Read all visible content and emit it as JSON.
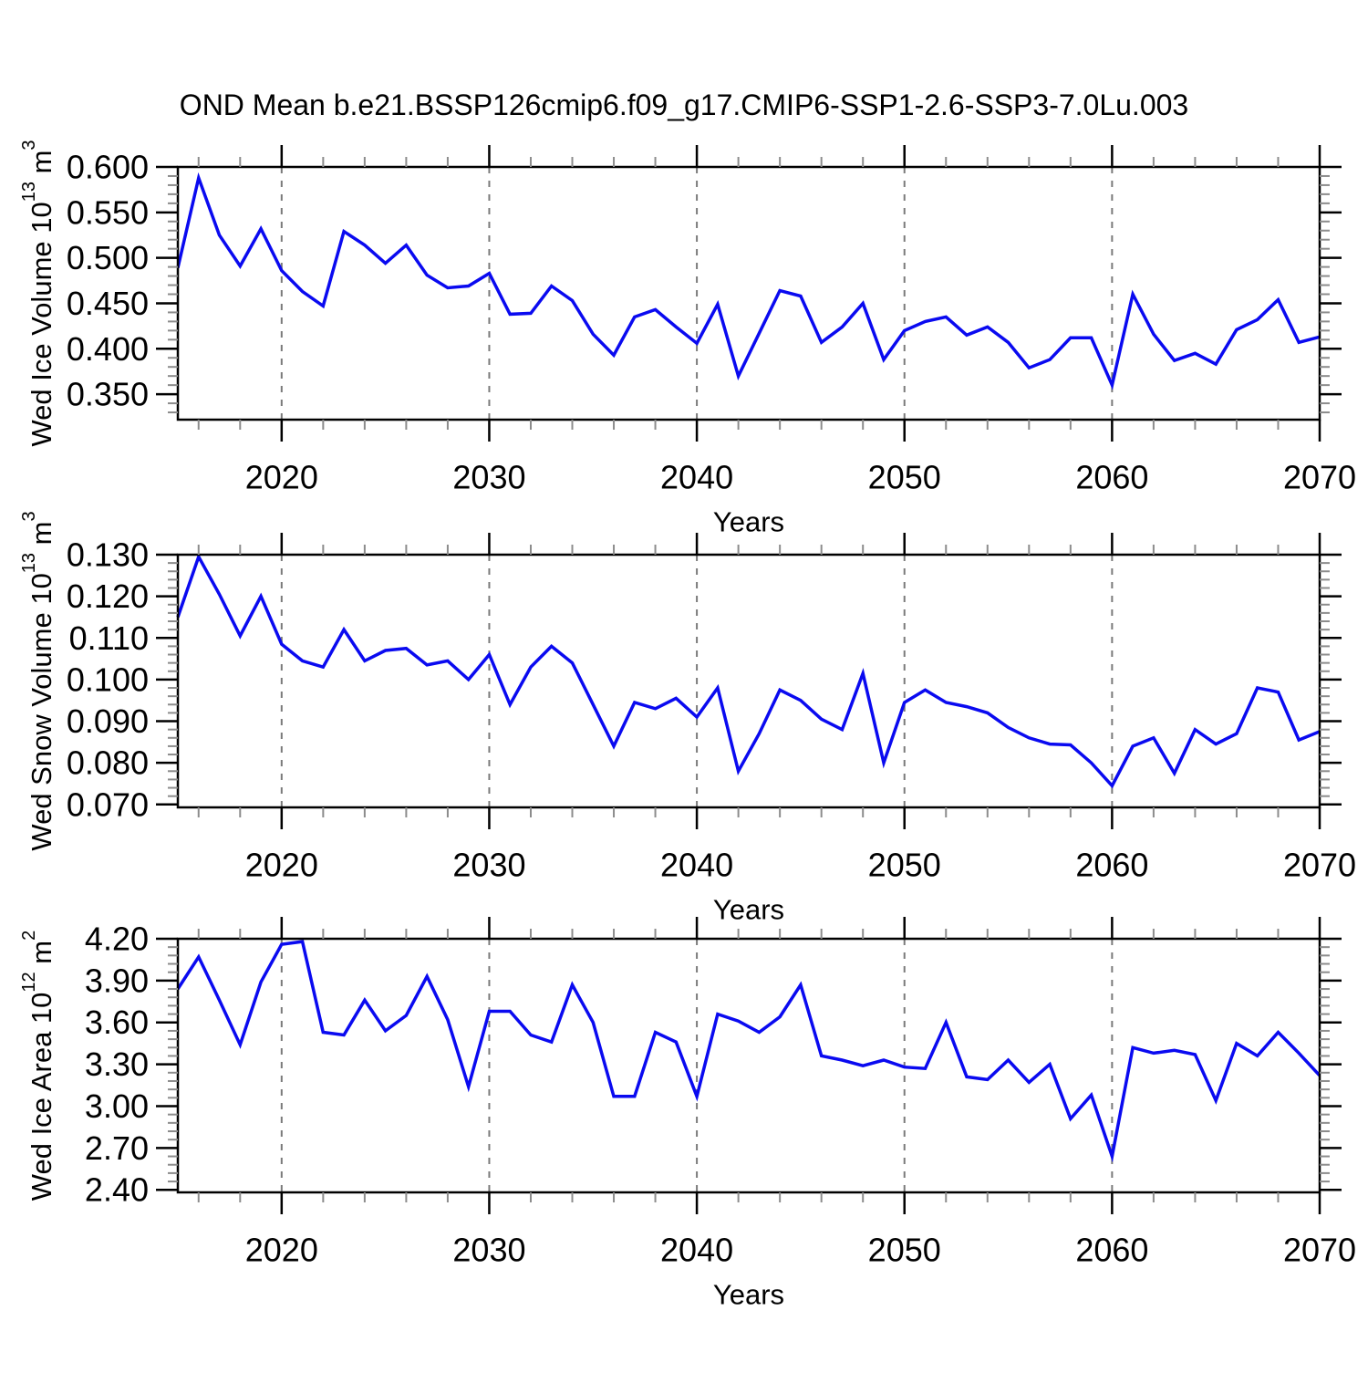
{
  "title": "OND Mean b.e21.BSSP126cmip6.f09_g17.CMIP6-SSP1-2.6-SSP3-7.0Lu.003",
  "colors": {
    "line": "#0a0af0",
    "gridline": "#7a7a7a",
    "axis": "#000000",
    "minor_tick": "#8c8c8c",
    "text": "#000000",
    "background": "#ffffff"
  },
  "x_axis": {
    "label": "Years",
    "range": [
      2015,
      2070
    ],
    "major_ticks": [
      2020,
      2030,
      2040,
      2050,
      2060,
      2070
    ],
    "major_tick_labels": [
      "2020",
      "2030",
      "2040",
      "2050",
      "2060",
      "2070"
    ],
    "minor_tick_step_years": 2,
    "gridline_years": [
      2020,
      2030,
      2040,
      2050,
      2060
    ],
    "grid_style": "dashed"
  },
  "years": [
    2015,
    2016,
    2017,
    2018,
    2019,
    2020,
    2021,
    2022,
    2023,
    2024,
    2025,
    2026,
    2027,
    2028,
    2029,
    2030,
    2031,
    2032,
    2033,
    2034,
    2035,
    2036,
    2037,
    2038,
    2039,
    2040,
    2041,
    2042,
    2043,
    2044,
    2045,
    2046,
    2047,
    2048,
    2049,
    2050,
    2051,
    2052,
    2053,
    2054,
    2055,
    2056,
    2057,
    2058,
    2059,
    2060,
    2061,
    2062,
    2063,
    2064,
    2065,
    2066,
    2067,
    2068,
    2069,
    2070
  ],
  "chart_data": [
    {
      "type": "line",
      "name": "wed-ice-volume",
      "ylabel": "Wed Ice Volume 10^13 m^3",
      "ylabel_segments": [
        {
          "t": "Wed Ice Volume 10"
        },
        {
          "t": "13",
          "sup": true
        },
        {
          "t": " m"
        },
        {
          "t": "3",
          "sup": true
        }
      ],
      "xlabel": "Years",
      "ylim": [
        0.322,
        0.6
      ],
      "ytick_values": [
        0.35,
        0.4,
        0.45,
        0.5,
        0.55,
        0.6
      ],
      "ytick_labels": [
        "0.350",
        "0.400",
        "0.450",
        "0.500",
        "0.550",
        "0.600"
      ],
      "yminor_step": 0.01,
      "values": [
        0.489,
        0.588,
        0.525,
        0.491,
        0.532,
        0.486,
        0.463,
        0.447,
        0.529,
        0.514,
        0.494,
        0.514,
        0.481,
        0.467,
        0.469,
        0.483,
        0.438,
        0.439,
        0.469,
        0.453,
        0.416,
        0.393,
        0.435,
        0.443,
        0.424,
        0.406,
        0.449,
        0.37,
        0.417,
        0.464,
        0.458,
        0.407,
        0.424,
        0.45,
        0.388,
        0.42,
        0.43,
        0.435,
        0.415,
        0.424,
        0.407,
        0.379,
        0.388,
        0.412,
        0.412,
        0.36,
        0.46,
        0.416,
        0.387,
        0.395,
        0.383,
        0.421,
        0.432,
        0.454,
        0.407,
        0.413
      ]
    },
    {
      "type": "line",
      "name": "wed-snow-volume",
      "ylabel": "Wed Snow Volume 10^13 m^3",
      "ylabel_segments": [
        {
          "t": "Wed Snow Volume 10"
        },
        {
          "t": "13",
          "sup": true
        },
        {
          "t": " m"
        },
        {
          "t": "3",
          "sup": true
        }
      ],
      "xlabel": "Years",
      "ylim": [
        0.0693,
        0.13
      ],
      "ytick_values": [
        0.07,
        0.08,
        0.09,
        0.1,
        0.11,
        0.12,
        0.13
      ],
      "ytick_labels": [
        "0.070",
        "0.080",
        "0.090",
        "0.100",
        "0.110",
        "0.120",
        "0.130"
      ],
      "yminor_step": 0.002,
      "values": [
        0.115,
        0.1295,
        0.1205,
        0.1105,
        0.12,
        0.1085,
        0.1045,
        0.103,
        0.112,
        0.1045,
        0.107,
        0.1075,
        0.1035,
        0.1045,
        0.1,
        0.106,
        0.094,
        0.103,
        0.108,
        0.104,
        0.094,
        0.084,
        0.0945,
        0.093,
        0.0955,
        0.091,
        0.098,
        0.078,
        0.087,
        0.0975,
        0.095,
        0.0905,
        0.088,
        0.1015,
        0.08,
        0.0945,
        0.0975,
        0.0945,
        0.0935,
        0.092,
        0.0885,
        0.086,
        0.0845,
        0.0843,
        0.08,
        0.0745,
        0.084,
        0.086,
        0.0775,
        0.088,
        0.0845,
        0.087,
        0.098,
        0.097,
        0.0855,
        0.0875
      ]
    },
    {
      "type": "line",
      "name": "wed-ice-area",
      "ylabel": "Wed Ice Area 10^12 m^2",
      "ylabel_segments": [
        {
          "t": "Wed Ice Area 10"
        },
        {
          "t": "12",
          "sup": true
        },
        {
          "t": " m"
        },
        {
          "t": "2",
          "sup": true
        }
      ],
      "xlabel": "Years",
      "ylim": [
        2.382,
        4.2
      ],
      "ytick_values": [
        2.4,
        2.7,
        3.0,
        3.3,
        3.6,
        3.9,
        4.2
      ],
      "ytick_labels": [
        "2.40",
        "2.70",
        "3.00",
        "3.30",
        "3.60",
        "3.90",
        "4.20"
      ],
      "yminor_step": 0.06,
      "values": [
        3.84,
        4.07,
        3.76,
        3.44,
        3.89,
        4.16,
        4.18,
        3.53,
        3.51,
        3.76,
        3.54,
        3.65,
        3.93,
        3.62,
        3.14,
        3.68,
        3.68,
        3.51,
        3.46,
        3.87,
        3.6,
        3.07,
        3.07,
        3.53,
        3.46,
        3.07,
        3.66,
        3.61,
        3.53,
        3.64,
        3.87,
        3.36,
        3.33,
        3.29,
        3.33,
        3.28,
        3.27,
        3.6,
        3.21,
        3.19,
        3.33,
        3.17,
        3.3,
        2.91,
        3.08,
        2.64,
        3.42,
        3.38,
        3.4,
        3.37,
        3.04,
        3.45,
        3.36,
        3.53,
        3.38,
        3.22
      ]
    }
  ]
}
